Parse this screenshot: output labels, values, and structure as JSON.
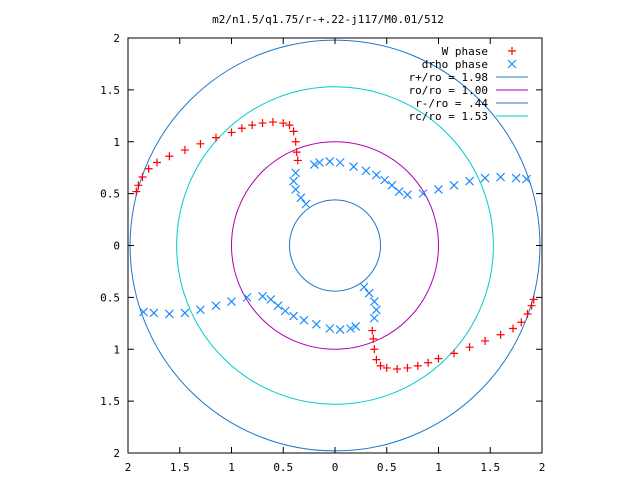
{
  "chart_data": {
    "type": "scatter",
    "title": "m2/n1.5/q1.75/r-+.22-j117/M0.01/512",
    "xlabel": "",
    "ylabel": "",
    "xlim": [
      -2,
      2
    ],
    "ylim": [
      -2,
      2
    ],
    "grid": false,
    "legend_position": "top-right",
    "x_ticks": [
      "2",
      "1.5",
      "1",
      "0.5",
      "0",
      "0.5",
      "1",
      "1.5",
      "2"
    ],
    "y_ticks": [
      "2",
      "1.5",
      "1",
      "0.5",
      "0",
      "0.5",
      "1",
      "1.5",
      "2"
    ],
    "series": [
      {
        "name": "W phase",
        "marker": "plus",
        "color": "#ff0000",
        "points": [
          [
            -1.92,
            0.52
          ],
          [
            -1.9,
            0.58
          ],
          [
            -1.86,
            0.66
          ],
          [
            -1.8,
            0.74
          ],
          [
            -1.72,
            0.8
          ],
          [
            -1.6,
            0.86
          ],
          [
            -1.45,
            0.92
          ],
          [
            -1.3,
            0.98
          ],
          [
            -1.15,
            1.04
          ],
          [
            -1.0,
            1.09
          ],
          [
            -0.9,
            1.13
          ],
          [
            -0.8,
            1.16
          ],
          [
            -0.7,
            1.18
          ],
          [
            -0.6,
            1.19
          ],
          [
            -0.5,
            1.18
          ],
          [
            -0.44,
            1.16
          ],
          [
            -0.4,
            1.1
          ],
          [
            -0.38,
            1.0
          ],
          [
            -0.37,
            0.9
          ],
          [
            -0.36,
            0.82
          ],
          [
            1.92,
            -0.52
          ],
          [
            1.9,
            -0.58
          ],
          [
            1.86,
            -0.66
          ],
          [
            1.8,
            -0.74
          ],
          [
            1.72,
            -0.8
          ],
          [
            1.6,
            -0.86
          ],
          [
            1.45,
            -0.92
          ],
          [
            1.3,
            -0.98
          ],
          [
            1.15,
            -1.04
          ],
          [
            1.0,
            -1.09
          ],
          [
            0.9,
            -1.13
          ],
          [
            0.8,
            -1.16
          ],
          [
            0.7,
            -1.18
          ],
          [
            0.6,
            -1.19
          ],
          [
            0.5,
            -1.18
          ],
          [
            0.44,
            -1.16
          ],
          [
            0.4,
            -1.1
          ],
          [
            0.38,
            -1.0
          ],
          [
            0.37,
            -0.9
          ],
          [
            0.36,
            -0.82
          ]
        ]
      },
      {
        "name": "drho phase",
        "marker": "cross",
        "color": "#1a8cff",
        "points": [
          [
            -0.38,
            0.7
          ],
          [
            -0.4,
            0.62
          ],
          [
            -0.38,
            0.54
          ],
          [
            -0.33,
            0.46
          ],
          [
            -0.28,
            0.4
          ],
          [
            -0.2,
            0.78
          ],
          [
            -0.15,
            0.8
          ],
          [
            -0.05,
            0.81
          ],
          [
            0.05,
            0.8
          ],
          [
            0.18,
            0.76
          ],
          [
            0.3,
            0.72
          ],
          [
            0.4,
            0.68
          ],
          [
            0.48,
            0.63
          ],
          [
            0.55,
            0.58
          ],
          [
            0.62,
            0.52
          ],
          [
            0.7,
            0.49
          ],
          [
            0.85,
            0.5
          ],
          [
            1.0,
            0.54
          ],
          [
            1.15,
            0.58
          ],
          [
            1.3,
            0.62
          ],
          [
            1.45,
            0.65
          ],
          [
            1.6,
            0.66
          ],
          [
            1.75,
            0.65
          ],
          [
            1.85,
            0.64
          ],
          [
            0.38,
            -0.7
          ],
          [
            0.4,
            -0.62
          ],
          [
            0.38,
            -0.54
          ],
          [
            0.33,
            -0.46
          ],
          [
            0.28,
            -0.4
          ],
          [
            0.2,
            -0.78
          ],
          [
            0.15,
            -0.8
          ],
          [
            0.05,
            -0.81
          ],
          [
            -0.05,
            -0.8
          ],
          [
            -0.18,
            -0.76
          ],
          [
            -0.3,
            -0.72
          ],
          [
            -0.4,
            -0.68
          ],
          [
            -0.48,
            -0.63
          ],
          [
            -0.55,
            -0.58
          ],
          [
            -0.62,
            -0.52
          ],
          [
            -0.7,
            -0.49
          ],
          [
            -0.85,
            -0.5
          ],
          [
            -1.0,
            -0.54
          ],
          [
            -1.15,
            -0.58
          ],
          [
            -1.3,
            -0.62
          ],
          [
            -1.45,
            -0.65
          ],
          [
            -1.6,
            -0.66
          ],
          [
            -1.75,
            -0.65
          ],
          [
            -1.85,
            -0.64
          ]
        ]
      },
      {
        "name": "r+/ro = 1.98",
        "type": "circle",
        "radius": 1.98,
        "color": "#1f78c8"
      },
      {
        "name": "ro/ro = 1.00",
        "type": "circle",
        "radius": 1.0,
        "color": "#b000b0"
      },
      {
        "name": "r-/ro = .44",
        "type": "circle",
        "radius": 0.44,
        "color": "#1f78c8"
      },
      {
        "name": "rc/ro = 1.53",
        "type": "circle",
        "radius": 1.53,
        "color": "#00cccc"
      }
    ]
  }
}
